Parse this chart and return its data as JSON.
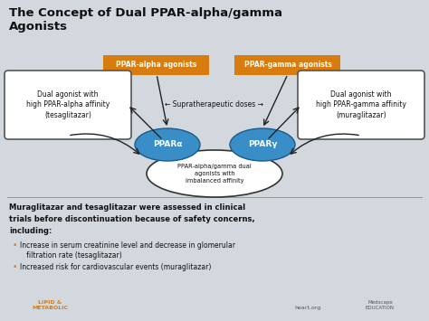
{
  "title": "The Concept of Dual PPAR-alpha/gamma\nAgonists",
  "title_fontsize": 9.5,
  "title_color": "#111111",
  "bg_color": "#d2d8de",
  "orange_color": "#d97c10",
  "blue_color": "#3a8ec8",
  "blue_edge": "#1a5a8a",
  "white_color": "#ffffff",
  "black_color": "#111111",
  "gray_edge": "#555555",
  "box_left_text": "Dual agonist with\nhigh PPAR-alpha affinity\n(tesaglitazar)",
  "box_right_text": "Dual agonist with\nhigh PPAR-gamma affinity\n(muraglitazar)",
  "label_alpha": "PPAR-alpha agonists",
  "label_gamma": "PPAR-gamma agonists",
  "ellipse_alpha_text": "PPARα",
  "ellipse_gamma_text": "PPARγ",
  "center_ellipse_text": "PPAR-alpha/gamma dual\nagonists with\nimbalanced affinity",
  "supra_text": "← Supratherapeutic doses →",
  "bottom_bold_line1": "Muraglitazar and tesaglitazar were assessed in clinical",
  "bottom_bold_line2": "trials before discontinuation because of safety concerns,",
  "bottom_bold_line3": "including:",
  "bullet1_line1": "Increase in serum creatinine level and decrease in glomerular",
  "bullet1_line2": "   filtration rate (tesaglitazar)",
  "bullet2": "Increased risk for cardiovascular events (muraglitazar)",
  "logo_lipid": "LIPID &\nMETABOLIC",
  "logo_heart": "heart.org",
  "logo_medscape": "Medscape\nEDUCATION",
  "arrow_color": "#222222",
  "divider_color": "#999999"
}
